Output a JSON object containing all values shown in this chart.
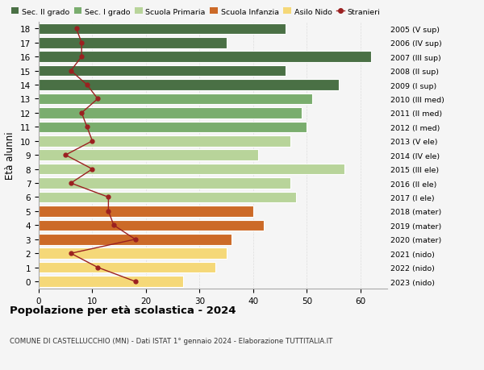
{
  "ages": [
    18,
    17,
    16,
    15,
    14,
    13,
    12,
    11,
    10,
    9,
    8,
    7,
    6,
    5,
    4,
    3,
    2,
    1,
    0
  ],
  "labels_right": [
    "2005 (V sup)",
    "2006 (IV sup)",
    "2007 (III sup)",
    "2008 (II sup)",
    "2009 (I sup)",
    "2010 (III med)",
    "2011 (II med)",
    "2012 (I med)",
    "2013 (V ele)",
    "2014 (IV ele)",
    "2015 (III ele)",
    "2016 (II ele)",
    "2017 (I ele)",
    "2018 (mater)",
    "2019 (mater)",
    "2020 (mater)",
    "2021 (nido)",
    "2022 (nido)",
    "2023 (nido)"
  ],
  "bar_values": [
    46,
    35,
    62,
    46,
    56,
    51,
    49,
    50,
    47,
    41,
    57,
    47,
    48,
    40,
    42,
    36,
    35,
    33,
    27
  ],
  "bar_colors": [
    "#4a7045",
    "#4a7045",
    "#4a7045",
    "#4a7045",
    "#4a7045",
    "#7aad6e",
    "#7aad6e",
    "#7aad6e",
    "#b8d49a",
    "#b8d49a",
    "#b8d49a",
    "#b8d49a",
    "#b8d49a",
    "#cc6a28",
    "#cc6a28",
    "#cc6a28",
    "#f5d878",
    "#f5d878",
    "#f5d878"
  ],
  "stranieri_values": [
    7,
    8,
    8,
    6,
    9,
    11,
    8,
    9,
    10,
    5,
    10,
    6,
    13,
    13,
    14,
    18,
    6,
    11,
    18
  ],
  "stranieri_color": "#9b2020",
  "title": "Popolazione per età scolastica - 2024",
  "subtitle": "COMUNE DI CASTELLUCCHIO (MN) - Dati ISTAT 1° gennaio 2024 - Elaborazione TUTTITALIA.IT",
  "ylabel": "Età alunni",
  "xlim": [
    0,
    65
  ],
  "xticks": [
    0,
    10,
    20,
    30,
    40,
    50,
    60
  ],
  "legend_labels": [
    "Sec. II grado",
    "Sec. I grado",
    "Scuola Primaria",
    "Scuola Infanzia",
    "Asilo Nido",
    "Stranieri"
  ],
  "legend_colors": [
    "#4a7045",
    "#7aad6e",
    "#b8d49a",
    "#cc6a28",
    "#f5d878",
    "#9b2020"
  ],
  "bg_color": "#f5f5f5",
  "grid_color": "#dddddd"
}
